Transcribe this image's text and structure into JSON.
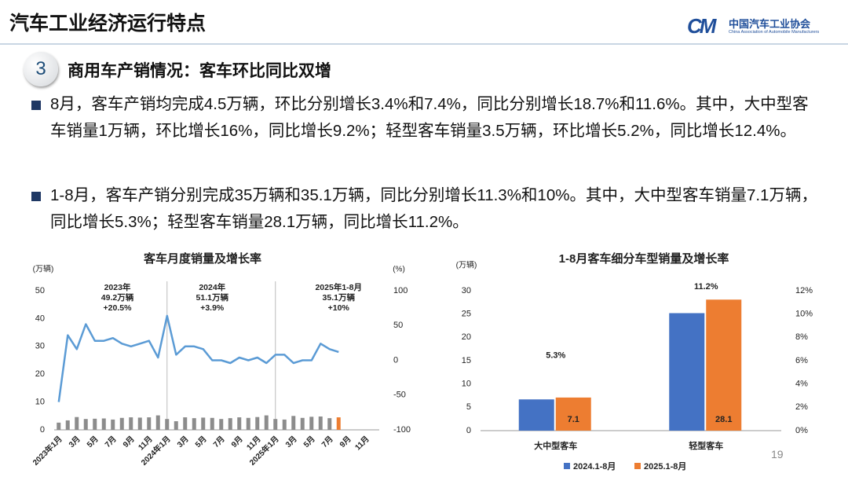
{
  "header": {
    "title": "汽车工业经济运行特点"
  },
  "logo": {
    "mark": "CM",
    "name": "中国汽车工业协会",
    "subtitle": "China Association of Automobile Manufacturers"
  },
  "section": {
    "number": "3",
    "title": "商用车产销情况：客车环比同比双增"
  },
  "bullets": [
    "8月，客车产销均完成4.5万辆，环比分别增长3.4%和7.4%，同比分别增长18.7%和11.6%。其中，大中型客车销量1万辆，环比增长16%，同比增长9.2%；轻型客车销量3.5万辆，环比增长5.2%，同比增长12.4%。",
    "1-8月，客车产销分别完成35万辆和35.1万辆，同比分别增长11.3%和10%。其中，大中型客车销量7.1万辆，同比增长5.3%；轻型客车销量28.1万辆，同比增长11.2%。"
  ],
  "page_number": "19",
  "chart_data": [
    {
      "type": "combo",
      "title": "客车月度销量及增长率",
      "y_unit": "(万辆)",
      "y2_unit": "(%)",
      "categories": [
        "2023年1月",
        null,
        "3月",
        null,
        "5月",
        null,
        "7月",
        null,
        "9月",
        null,
        "11月",
        null,
        "2024年1月",
        null,
        "3月",
        null,
        "5月",
        null,
        "7月",
        null,
        "9月",
        null,
        "11月",
        null,
        "2025年1月",
        null,
        "3月",
        null,
        "5月",
        null,
        "7月",
        null,
        "9月",
        null,
        "11月",
        null
      ],
      "ylim": [
        0,
        50
      ],
      "yticks": [
        0,
        10,
        20,
        30,
        40,
        50
      ],
      "y2lim": [
        -100,
        100
      ],
      "y2ticks": [
        -100,
        -50,
        0,
        50,
        100
      ],
      "series": [
        {
          "type": "bar",
          "values": [
            2.6,
            3.4,
            4.6,
            3.9,
            4.0,
            4.1,
            3.7,
            4.3,
            4.5,
            4.4,
            4.5,
            5.2,
            3.9,
            3.1,
            4.5,
            4.2,
            4.4,
            4.3,
            3.9,
            4.2,
            4.5,
            4.3,
            4.6,
            5.2,
            3.9,
            3.7,
            5.0,
            4.3,
            4.7,
            4.8,
            4.2,
            4.5,
            null,
            null,
            null,
            null
          ],
          "colors": [
            "#8c8c8c",
            "#8c8c8c",
            "#8c8c8c",
            "#8c8c8c",
            "#8c8c8c",
            "#8c8c8c",
            "#8c8c8c",
            "#8c8c8c",
            "#8c8c8c",
            "#8c8c8c",
            "#8c8c8c",
            "#8c8c8c",
            "#8c8c8c",
            "#8c8c8c",
            "#8c8c8c",
            "#8c8c8c",
            "#8c8c8c",
            "#8c8c8c",
            "#8c8c8c",
            "#8c8c8c",
            "#8c8c8c",
            "#8c8c8c",
            "#8c8c8c",
            "#8c8c8c",
            "#8c8c8c",
            "#8c8c8c",
            "#8c8c8c",
            "#8c8c8c",
            "#8c8c8c",
            "#8c8c8c",
            "#8c8c8c",
            "#ed7d31",
            null,
            null,
            null,
            null
          ]
        },
        {
          "type": "line",
          "axis": "y2",
          "color": "#5b9bd5",
          "values": [
            -60,
            36,
            16,
            52,
            28,
            28,
            32,
            24,
            20,
            24,
            28,
            4,
            64,
            8,
            20,
            20,
            16,
            0,
            0,
            -4,
            4,
            0,
            4,
            -4,
            8,
            8,
            -4,
            0,
            0,
            24,
            16,
            12,
            null,
            null,
            null,
            null
          ]
        }
      ],
      "annotations": [
        {
          "lines": [
            "2023年",
            "49.2万辆",
            "+20.5%"
          ]
        },
        {
          "lines": [
            "2024年",
            "51.1万辆",
            "+3.9%"
          ]
        },
        {
          "lines": [
            "2025年1-8月",
            "35.1万辆",
            "+10%"
          ]
        }
      ]
    },
    {
      "type": "bar",
      "title": "1-8月客车细分车型销量及增长率",
      "y_unit": "(万辆)",
      "categories": [
        "大中型客车",
        "轻型客车"
      ],
      "ylim": [
        0,
        30
      ],
      "yticks": [
        0,
        5,
        10,
        15,
        20,
        25,
        30
      ],
      "y2lim": [
        0,
        12
      ],
      "y2ticks": [
        {
          "value": 0,
          "label": "0%"
        },
        {
          "value": 2,
          "label": "2%"
        },
        {
          "value": 4,
          "label": "4%"
        },
        {
          "value": 6,
          "label": "6%"
        },
        {
          "value": 8,
          "label": "8%"
        },
        {
          "value": 10,
          "label": "10%"
        },
        {
          "value": 12,
          "label": "12%"
        }
      ],
      "series": [
        {
          "name": "2024.1-8月",
          "color": "#4472c4",
          "values": [
            6.7,
            25.2
          ]
        },
        {
          "name": "2025.1-8月",
          "color": "#ed7d31",
          "values": [
            7.1,
            28.1
          ],
          "value_labels": [
            "7.1",
            "28.1"
          ]
        }
      ],
      "growth": {
        "axis": "y2",
        "values": [
          5.3,
          11.2
        ],
        "value_labels": [
          "5.3%",
          "11.2%"
        ]
      },
      "legend": "bottom"
    }
  ]
}
